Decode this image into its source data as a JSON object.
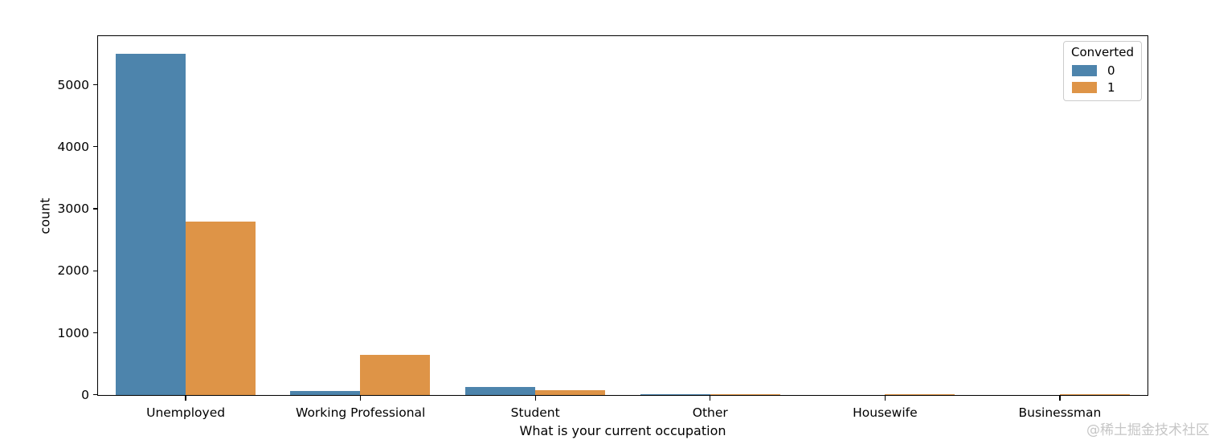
{
  "chart_data": {
    "type": "bar",
    "title": "",
    "categories": [
      "Unemployed",
      "Working Professional",
      "Student",
      "Other",
      "Housewife",
      "Businessman"
    ],
    "series": [
      {
        "name": "0",
        "color": "#4d84ac",
        "values": [
          5500,
          60,
          130,
          10,
          0,
          0
        ]
      },
      {
        "name": "1",
        "color": "#de9447",
        "values": [
          2800,
          650,
          80,
          10,
          10,
          10
        ]
      }
    ],
    "xlabel": "What is your current occupation",
    "ylabel": "count",
    "ylim": [
      0,
      5780
    ],
    "yticks": [
      0,
      1000,
      2000,
      3000,
      4000,
      5000
    ],
    "legend": {
      "title": "Converted",
      "position": "upper right",
      "entries": [
        "0",
        "1"
      ]
    },
    "grid": false,
    "bar_group_width_fraction": 0.8
  },
  "watermark": "@稀土掘金技术社区",
  "colors": {
    "axis": "#000000",
    "background": "#ffffff",
    "legend_border": "#cccccc",
    "watermark_text": "#c6c6c6"
  }
}
